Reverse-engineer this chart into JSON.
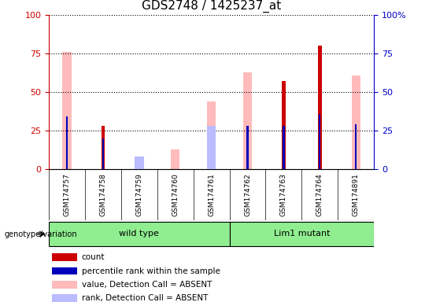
{
  "title": "GDS2748 / 1425237_at",
  "samples": [
    "GSM174757",
    "GSM174758",
    "GSM174759",
    "GSM174760",
    "GSM174761",
    "GSM174762",
    "GSM174763",
    "GSM174764",
    "GSM174891"
  ],
  "count": [
    0,
    28,
    0,
    0,
    0,
    0,
    57,
    80,
    0
  ],
  "percentile_rank": [
    34,
    20,
    0,
    0,
    0,
    28,
    28,
    36,
    29
  ],
  "value_absent": [
    76,
    0,
    0,
    13,
    44,
    63,
    0,
    0,
    61
  ],
  "rank_absent": [
    0,
    0,
    8,
    0,
    28,
    0,
    0,
    0,
    0
  ],
  "ylim": [
    0,
    100
  ],
  "yticks": [
    0,
    25,
    50,
    75,
    100
  ],
  "left_tick_color": "#cc0000",
  "right_tick_color": "#0000cc",
  "count_color": "#cc0000",
  "percentile_color": "#0000bb",
  "value_absent_color": "#ffbbbb",
  "rank_absent_color": "#bbbbff",
  "legend_items": [
    {
      "label": "count",
      "color": "#cc0000"
    },
    {
      "label": "percentile rank within the sample",
      "color": "#0000bb"
    },
    {
      "label": "value, Detection Call = ABSENT",
      "color": "#ffbbbb"
    },
    {
      "label": "rank, Detection Call = ABSENT",
      "color": "#bbbbff"
    }
  ],
  "genotype_label": "genotype/variation",
  "wild_type_label": "wild type",
  "lim1_label": "Lim1 mutant",
  "green_color": "#90EE90",
  "gray_color": "#c8c8c8",
  "title_fontsize": 11,
  "tick_fontsize": 8,
  "label_fontsize": 8
}
